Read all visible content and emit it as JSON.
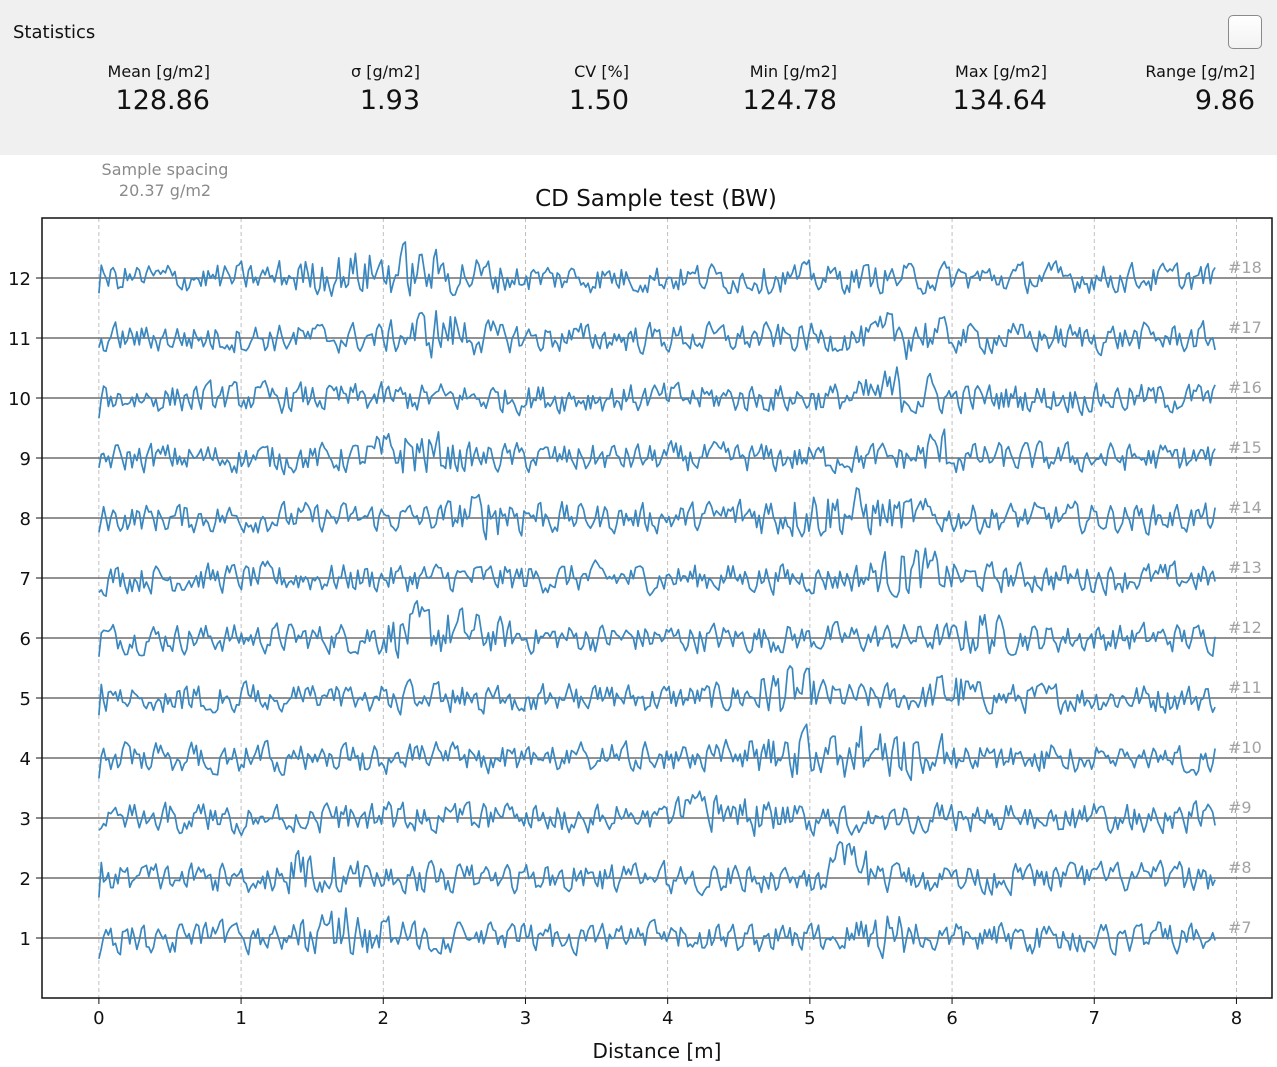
{
  "stats": {
    "title": "Statistics",
    "items": [
      {
        "label": "Mean [g/m2]",
        "value": "128.86"
      },
      {
        "label": "σ [g/m2]",
        "value": "1.93"
      },
      {
        "label": "CV [%]",
        "value": "1.50"
      },
      {
        "label": "Min [g/m2]",
        "value": "124.78"
      },
      {
        "label": "Max [g/m2]",
        "value": "134.64"
      },
      {
        "label": "Range [g/m2]",
        "value": "9.86"
      }
    ]
  },
  "spacing": {
    "label": "Sample spacing",
    "value": "20.37 g/m2"
  },
  "chart_data": {
    "type": "line",
    "title": "CD Sample test (BW)",
    "xlabel": "Distance [m]",
    "ylabel": "",
    "xlim": [
      -0.4,
      8.25
    ],
    "ylim": [
      0,
      13
    ],
    "x_ticks": [
      "0",
      "1",
      "2",
      "3",
      "4",
      "5",
      "6",
      "7",
      "8"
    ],
    "y_ticks": [
      "1",
      "2",
      "3",
      "4",
      "5",
      "6",
      "7",
      "8",
      "9",
      "10",
      "11",
      "12"
    ],
    "x_range": [
      0,
      7.85
    ],
    "grid": "vertical dashed at integer distances, horizontal solid at each sample baseline",
    "line_color": "#3a87bf",
    "series": [
      {
        "label": "#7",
        "baseline": 1,
        "amplitude": 0.34,
        "active": [
          [
            1.3,
            2.2
          ],
          [
            5.2,
            5.9
          ]
        ]
      },
      {
        "label": "#8",
        "baseline": 2,
        "amplitude": 0.34,
        "active": [
          [
            1.1,
            1.9
          ],
          [
            4.9,
            5.6
          ]
        ]
      },
      {
        "label": "#9",
        "baseline": 3,
        "amplitude": 0.34,
        "active": [
          [
            4.0,
            4.8
          ]
        ]
      },
      {
        "label": "#10",
        "baseline": 4,
        "amplitude": 0.34,
        "active": [
          [
            4.3,
            6.3
          ]
        ]
      },
      {
        "label": "#11",
        "baseline": 5,
        "amplitude": 0.34,
        "active": [
          [
            4.4,
            5.2
          ],
          [
            5.8,
            6.2
          ]
        ]
      },
      {
        "label": "#12",
        "baseline": 6,
        "amplitude": 0.34,
        "active": [
          [
            1.7,
            3.0
          ],
          [
            6.0,
            6.4
          ]
        ]
      },
      {
        "label": "#13",
        "baseline": 7,
        "amplitude": 0.34,
        "active": [
          [
            5.3,
            6.1
          ]
        ]
      },
      {
        "label": "#14",
        "baseline": 8,
        "amplitude": 0.34,
        "active": [
          [
            2.4,
            3.3
          ],
          [
            4.2,
            6.0
          ]
        ]
      },
      {
        "label": "#15",
        "baseline": 9,
        "amplitude": 0.34,
        "active": [
          [
            1.8,
            2.6
          ],
          [
            5.7,
            6.1
          ]
        ]
      },
      {
        "label": "#16",
        "baseline": 10,
        "amplitude": 0.34,
        "active": [
          [
            5.3,
            6.0
          ]
        ]
      },
      {
        "label": "#17",
        "baseline": 11,
        "amplitude": 0.34,
        "active": [
          [
            2.0,
            2.8
          ],
          [
            5.4,
            6.0
          ]
        ]
      },
      {
        "label": "#18",
        "baseline": 12,
        "amplitude": 0.34,
        "active": [
          [
            1.1,
            3.0
          ]
        ]
      }
    ]
  }
}
